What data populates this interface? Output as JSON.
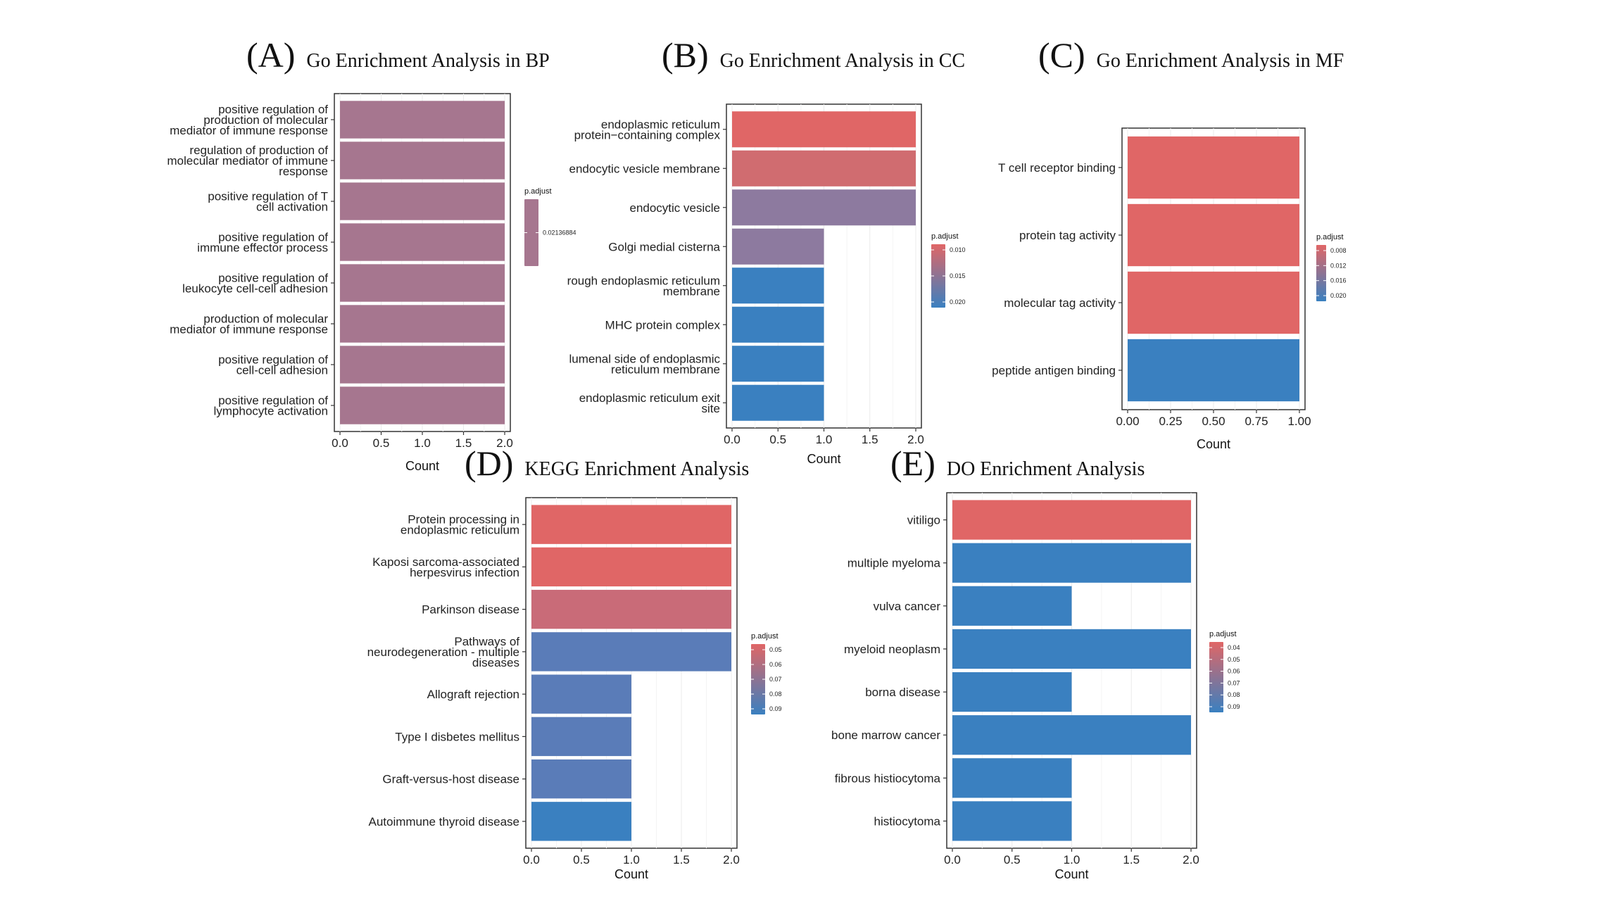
{
  "colors": {
    "red": "#e06666",
    "blue": "#3a80c0",
    "mid": "#a97b8f"
  },
  "chart_data": [
    {
      "id": "A",
      "type": "bar",
      "orientation": "horizontal",
      "panel_label": "(A)",
      "title": "Go Enrichment Analysis in BP",
      "xlabel": "Count",
      "xlim": [
        0,
        2
      ],
      "xticks": [
        "0.0",
        "0.5",
        "1.0",
        "1.5",
        "2.0"
      ],
      "categories": [
        [
          "positive regulation of",
          "production of molecular",
          "mediator of immune response"
        ],
        [
          "regulation of production of",
          "molecular mediator of immune",
          "response"
        ],
        [
          "positive regulation of T",
          "cell activation"
        ],
        [
          "positive regulation of",
          "immune effector process"
        ],
        [
          "positive regulation of",
          "leukocyte cell-cell adhesion"
        ],
        [
          "production of molecular",
          "mediator of immune response"
        ],
        [
          "positive regulation of",
          "cell-cell adhesion"
        ],
        [
          "positive regulation of",
          "lymphocyte activation"
        ]
      ],
      "values": [
        2,
        2,
        2,
        2,
        2,
        2,
        2,
        2
      ],
      "bar_colors": [
        "#a6768f",
        "#a6768f",
        "#a6768f",
        "#a6768f",
        "#a6768f",
        "#a6768f",
        "#a6768f",
        "#a6768f"
      ],
      "legend": {
        "title": "p.adjust",
        "ticks": [
          "0.02136884"
        ],
        "gradient": [
          "#a6768f",
          "#a6768f"
        ]
      }
    },
    {
      "id": "B",
      "type": "bar",
      "orientation": "horizontal",
      "panel_label": "(B)",
      "title": "Go Enrichment Analysis in CC",
      "xlabel": "Count",
      "xlim": [
        0,
        2
      ],
      "xticks": [
        "0.0",
        "0.5",
        "1.0",
        "1.5",
        "2.0"
      ],
      "categories": [
        [
          "endoplasmic reticulum",
          "protein−containing complex"
        ],
        [
          "endocytic vesicle membrane"
        ],
        [
          "endocytic vesicle"
        ],
        [
          "Golgi medial cisterna"
        ],
        [
          "rough endoplasmic reticulum",
          "membrane"
        ],
        [
          "MHC protein complex"
        ],
        [
          "lumenal side of endoplasmic",
          "reticulum membrane"
        ],
        [
          "endoplasmic reticulum exit",
          "site"
        ]
      ],
      "values": [
        2,
        2,
        2,
        1,
        1,
        1,
        1,
        1
      ],
      "bar_colors": [
        "#e06666",
        "#d06c70",
        "#8d7a9f",
        "#8d7a9f",
        "#3a80c0",
        "#3a80c0",
        "#3a80c0",
        "#3a80c0"
      ],
      "legend": {
        "title": "p.adjust",
        "ticks": [
          "0.010",
          "0.015",
          "0.020"
        ],
        "gradient": [
          "#e06666",
          "#3a80c0"
        ]
      }
    },
    {
      "id": "C",
      "type": "bar",
      "orientation": "horizontal",
      "panel_label": "(C)",
      "title": "Go Enrichment Analysis in MF",
      "xlabel": "Count",
      "xlim": [
        0,
        1
      ],
      "xticks": [
        "0.00",
        "0.25",
        "0.50",
        "0.75",
        "1.00"
      ],
      "categories": [
        [
          "T cell receptor binding"
        ],
        [
          "protein tag activity"
        ],
        [
          "molecular tag activity"
        ],
        [
          "peptide antigen binding"
        ]
      ],
      "values": [
        1,
        1,
        1,
        1
      ],
      "bar_colors": [
        "#e06666",
        "#e06666",
        "#e06666",
        "#3a80c0"
      ],
      "legend": {
        "title": "p.adjust",
        "ticks": [
          "0.008",
          "0.012",
          "0.016",
          "0.020"
        ],
        "gradient": [
          "#e06666",
          "#3a80c0"
        ]
      }
    },
    {
      "id": "D",
      "type": "bar",
      "orientation": "horizontal",
      "panel_label": "(D)",
      "title": "KEGG Enrichment Analysis",
      "xlabel": "Count",
      "xlim": [
        0,
        2
      ],
      "xticks": [
        "0.0",
        "0.5",
        "1.0",
        "1.5",
        "2.0"
      ],
      "categories": [
        [
          "Protein processing in",
          "endoplasmic reticulum"
        ],
        [
          "Kaposi sarcoma-associated",
          "herpesvirus infection"
        ],
        [
          "Parkinson disease"
        ],
        [
          "Pathways of",
          "neurodegeneration - multiple",
          "diseases"
        ],
        [
          "Allograft rejection"
        ],
        [
          "Type I disbetes mellitus"
        ],
        [
          "Graft-versus-host disease"
        ],
        [
          "Autoimmune thyroid disease"
        ]
      ],
      "values": [
        2,
        2,
        2,
        2,
        1,
        1,
        1,
        1
      ],
      "bar_colors": [
        "#e06666",
        "#e06666",
        "#c96b78",
        "#5a7cb8",
        "#5a7cb8",
        "#5a7cb8",
        "#5a7cb8",
        "#3a80c0"
      ],
      "legend": {
        "title": "p.adjust",
        "ticks": [
          "0.05",
          "0.06",
          "0.07",
          "0.08",
          "0.09"
        ],
        "gradient": [
          "#e06666",
          "#3a80c0"
        ]
      }
    },
    {
      "id": "E",
      "type": "bar",
      "orientation": "horizontal",
      "panel_label": "(E)",
      "title": "DO Enrichment Analysis",
      "xlabel": "Count",
      "xlim": [
        0,
        2
      ],
      "xticks": [
        "0.0",
        "0.5",
        "1.0",
        "1.5",
        "2.0"
      ],
      "categories": [
        [
          "vitiligo"
        ],
        [
          "multiple myeloma"
        ],
        [
          "vulva cancer"
        ],
        [
          "myeloid neoplasm"
        ],
        [
          "borna disease"
        ],
        [
          "bone marrow cancer"
        ],
        [
          "fibrous histiocytoma"
        ],
        [
          "histiocytoma"
        ]
      ],
      "values": [
        2,
        2,
        1,
        2,
        1,
        2,
        1,
        1
      ],
      "bar_colors": [
        "#e06666",
        "#3a80c0",
        "#3a80c0",
        "#3a80c0",
        "#3a80c0",
        "#3a80c0",
        "#3a80c0",
        "#3a80c0"
      ],
      "legend": {
        "title": "p.adjust",
        "ticks": [
          "0.04",
          "0.05",
          "0.06",
          "0.07",
          "0.08",
          "0.09"
        ],
        "gradient": [
          "#e06666",
          "#3a80c0"
        ]
      }
    }
  ]
}
